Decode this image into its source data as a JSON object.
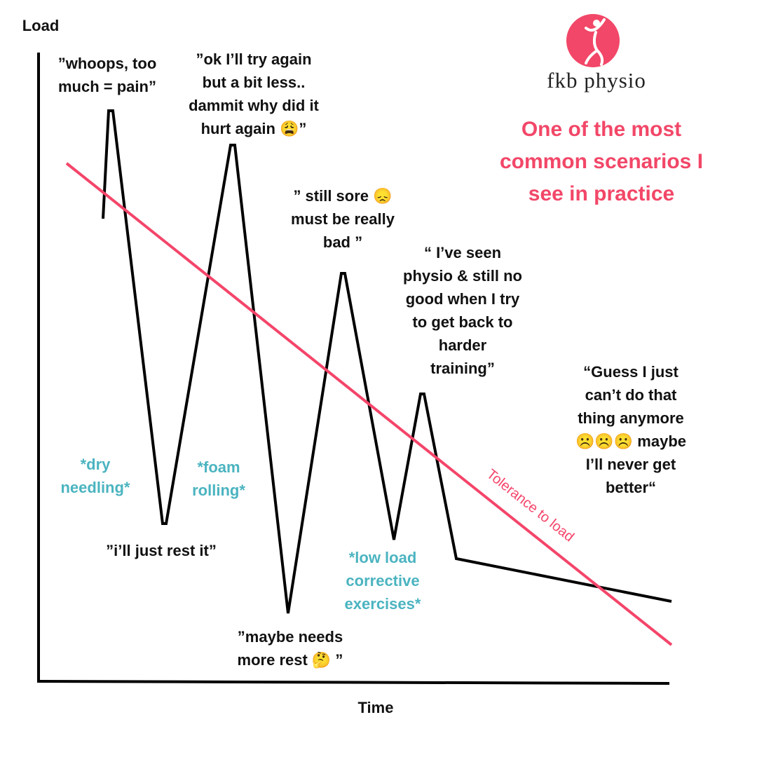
{
  "axes": {
    "y_label": "Load",
    "x_label": "Time"
  },
  "logo": {
    "text": "fkb physio"
  },
  "headline": [
    "One of the most",
    "common scenarios I",
    "see in practice"
  ],
  "quotes": [
    [
      "”whoops, too",
      "much = pain”"
    ],
    [
      "”ok I’ll try again",
      "but a bit less..",
      "dammit why did it",
      "hurt again 😩”"
    ],
    [
      "” still sore 😞",
      "must be really",
      "bad ”"
    ],
    [
      "“ I’ve seen",
      "physio & still no",
      "good when I try",
      "to get back to",
      "harder",
      "training”"
    ],
    [
      "“Guess I just",
      "can’t do that",
      "thing anymore",
      "☹️☹️☹️ maybe",
      "I’ll never get",
      "better“"
    ],
    [
      "”i’ll just rest it”"
    ],
    [
      "”maybe needs",
      "more rest 🤔 ”"
    ]
  ],
  "treatments": [
    [
      "*dry",
      "needling*"
    ],
    [
      "*foam",
      "rolling*"
    ],
    [
      "*low load",
      "corrective",
      "exercises*"
    ]
  ],
  "tolerance_label": "Tolerance to load"
}
